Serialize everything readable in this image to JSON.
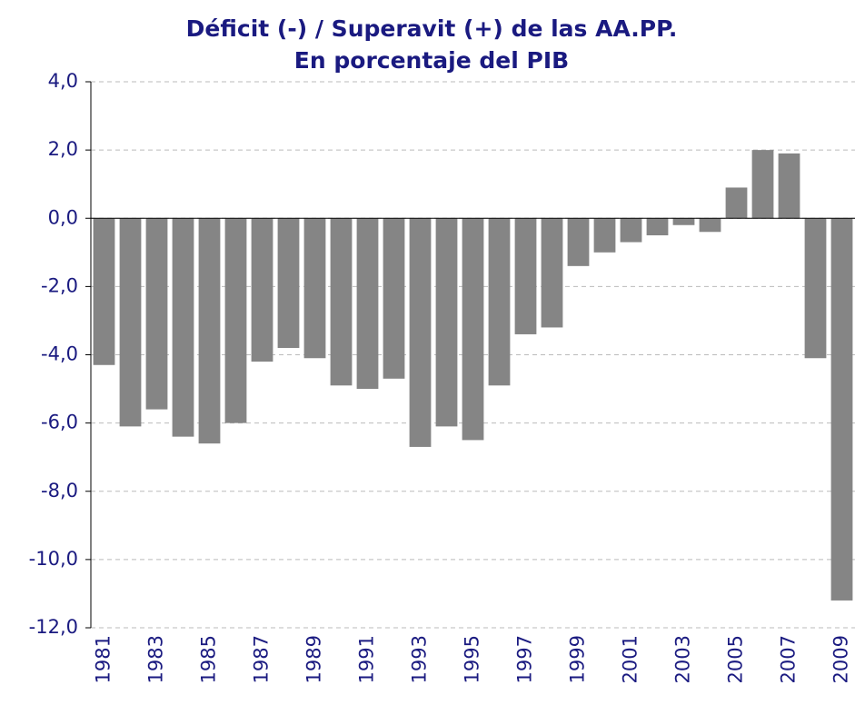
{
  "chart_data": {
    "type": "bar",
    "title": "Déficit (-) / Superavit (+) de las AA.PP.",
    "subtitle": "En porcentaje del PIB",
    "categories": [
      "1981",
      null,
      "1983",
      null,
      "1985",
      null,
      "1987",
      null,
      "1989",
      null,
      "1991",
      null,
      "1993",
      null,
      "1995",
      null,
      "1997",
      null,
      "1999",
      null,
      "2001",
      null,
      "2003",
      null,
      "2005",
      null,
      "2007",
      null,
      "2009"
    ],
    "values": [
      -4.3,
      -6.1,
      -5.6,
      -6.4,
      -6.6,
      -6.0,
      -4.2,
      -3.8,
      -4.1,
      -4.9,
      -5.0,
      -4.7,
      -6.7,
      -6.1,
      -6.5,
      -4.9,
      -3.4,
      -3.2,
      -1.4,
      -1.0,
      -0.7,
      -0.5,
      -0.2,
      -0.4,
      0.9,
      2.0,
      1.9,
      -4.1,
      -11.2
    ],
    "color": "#858585",
    "ylim": [
      -12,
      4
    ],
    "yticks": [
      {
        "value": -12,
        "label": "-12,0"
      },
      {
        "value": -10,
        "label": "-10,0"
      },
      {
        "value": -8,
        "label": "-8,0"
      },
      {
        "value": -6,
        "label": "-6,0"
      },
      {
        "value": -4,
        "label": "-4,0"
      },
      {
        "value": -2,
        "label": "-2,0"
      },
      {
        "value": 0,
        "label": "0,0"
      },
      {
        "value": 2,
        "label": "2,0"
      },
      {
        "value": 4,
        "label": "4,0"
      }
    ],
    "grid": true
  }
}
